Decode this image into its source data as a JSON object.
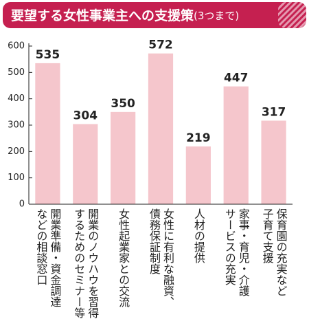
{
  "chart_data": {
    "type": "bar",
    "title": "要望する女性事業主への支援策",
    "subtitle": "(3つまで)",
    "categories": [
      "開業準備・資金調達\nなどの相談窓口",
      "開業のノウハウを習得\nするためのセミナー等",
      "女性起業家との交流",
      "女性に有利な融資、\n債務保証制度",
      "人材の提供",
      "家事・育児・介護\nサービスの充実",
      "保育園の充実など\n子育て支援"
    ],
    "values": [
      535,
      304,
      350,
      572,
      219,
      447,
      317
    ],
    "color": "#f5c6cc",
    "ylim": [
      0,
      600
    ],
    "yticks": [
      0,
      100,
      200,
      300,
      400,
      500,
      600
    ],
    "grid": false
  }
}
